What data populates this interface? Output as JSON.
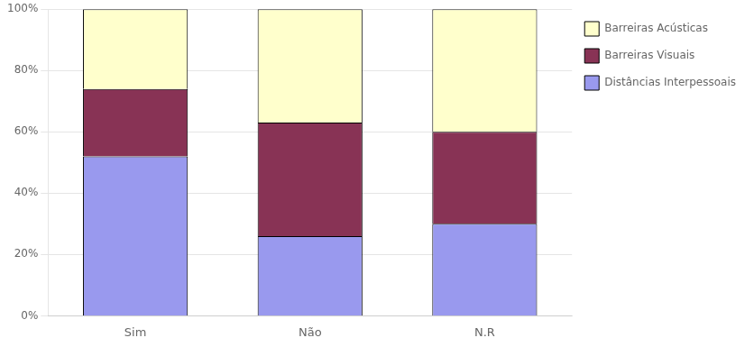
{
  "chart_data": {
    "type": "bar",
    "stacked": true,
    "categories": [
      "Sim",
      "Não",
      "N.R"
    ],
    "series": [
      {
        "name": "Distâncias Interpessoais",
        "color": "#9999ee",
        "values": [
          0.52,
          0.26,
          0.3
        ]
      },
      {
        "name": "Barreiras Visuais",
        "color": "#883355",
        "values": [
          0.22,
          0.37,
          0.3
        ]
      },
      {
        "name": "Barreiras Acústicas",
        "color": "#ffffcc",
        "values": [
          0.26,
          0.37,
          0.4
        ]
      }
    ],
    "ylim": [
      0,
      1.0
    ],
    "yticks": [
      {
        "value": 0.0,
        "label": "0%"
      },
      {
        "value": 0.2,
        "label": "20%"
      },
      {
        "value": 0.4,
        "label": "40%"
      },
      {
        "value": 0.6,
        "label": "60%"
      },
      {
        "value": 0.8,
        "label": "80%"
      },
      {
        "value": 1.0,
        "label": "100%"
      }
    ],
    "grid": true,
    "legend": "right"
  }
}
